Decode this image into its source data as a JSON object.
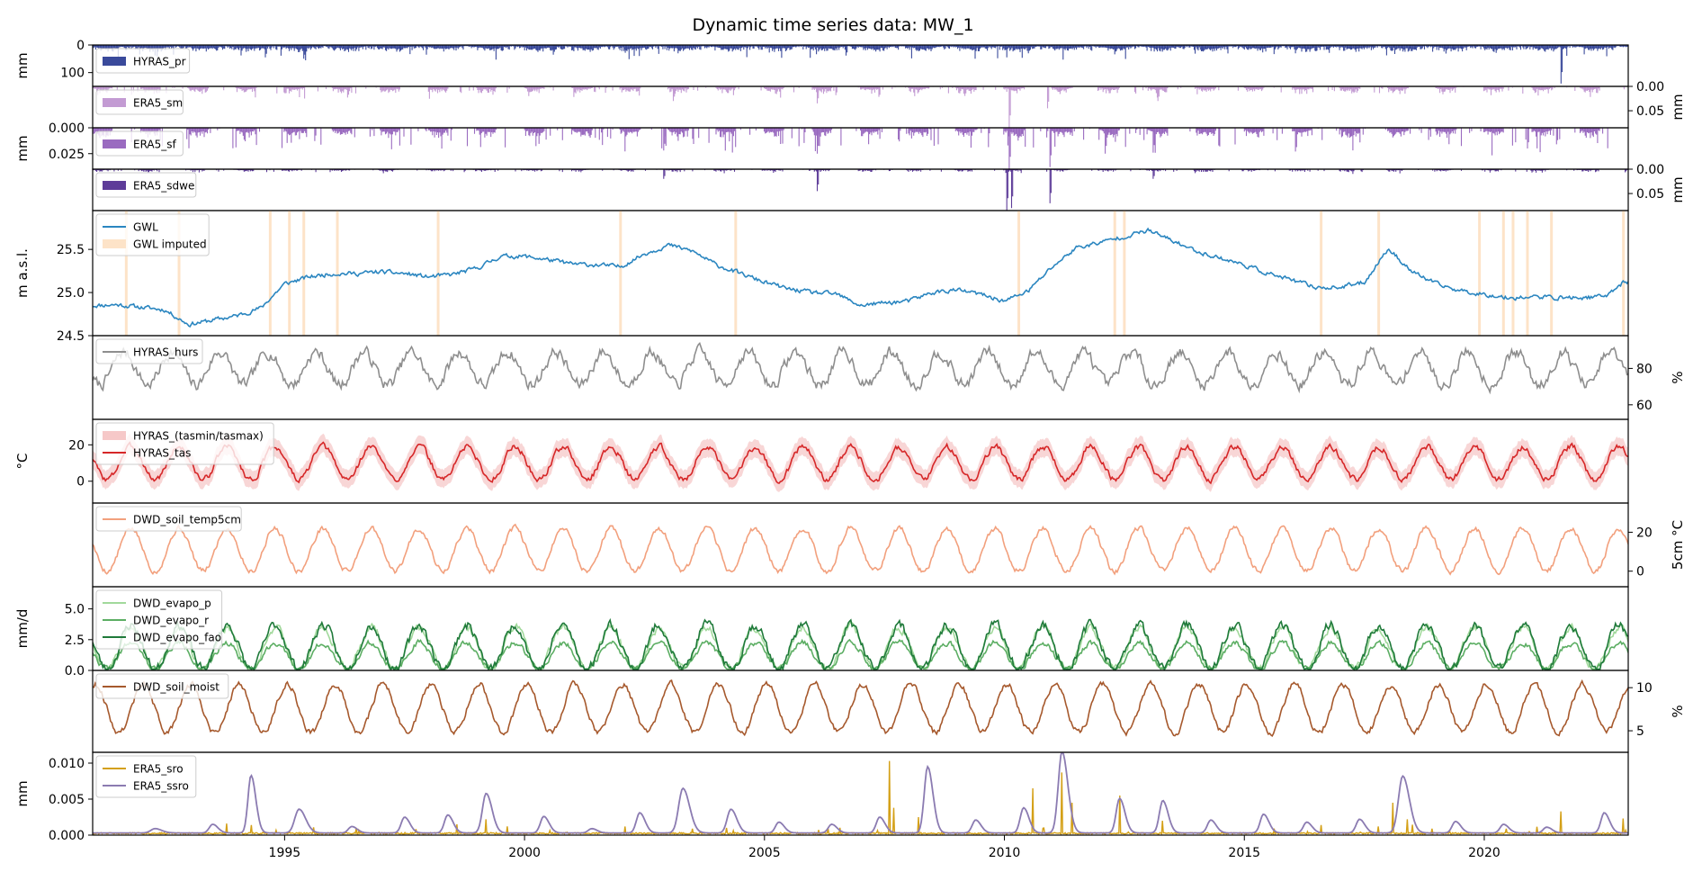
{
  "chart_data": {
    "type": "line",
    "title": "Dynamic time series data: MW_1",
    "x_axis": {
      "range": [
        1991.0,
        2023.0
      ],
      "ticks": [
        1995,
        2000,
        2005,
        2010,
        2015,
        2020
      ],
      "tick_labels": [
        "1995",
        "2000",
        "2005",
        "2010",
        "2015",
        "2020"
      ]
    },
    "panels": [
      {
        "id": "pr",
        "style": "bars_down",
        "ylabel": "mm",
        "ylabel_side": "left",
        "ylim": [
          150,
          0
        ],
        "ticks": [
          0,
          100
        ],
        "tick_labels": [
          "0",
          "100"
        ],
        "tick_side": "left",
        "series": [
          {
            "name": "HYRAS_pr",
            "color": "#3a4a9b",
            "legend_marker": "patch",
            "period": 1.0,
            "base": 8,
            "amp": 4,
            "phase": 0.3,
            "noise": 14,
            "spike_prob": 0.03,
            "spike_scale": 40,
            "events": [
              [
                1994.6,
                45
              ],
              [
                1995.4,
                50
              ],
              [
                2000.6,
                35
              ],
              [
                2003.2,
                30
              ],
              [
                2006.7,
                38
              ],
              [
                2010.5,
                30
              ],
              [
                2012.3,
                34
              ],
              [
                2021.6,
                140
              ],
              [
                2002.1,
                28
              ]
            ]
          }
        ]
      },
      {
        "id": "sm",
        "style": "bars_down",
        "ylabel": "mm",
        "ylabel_side": "right",
        "ylim": [
          0.085,
          0
        ],
        "ticks": [
          0.0,
          0.05
        ],
        "tick_labels": [
          "0.00",
          "0.05"
        ],
        "tick_side": "right",
        "series": [
          {
            "name": "ERA5_sm",
            "color": "#c39bd3",
            "legend_marker": "patch",
            "period": 1.0,
            "base": 0.002,
            "amp": 0.004,
            "phase": 0.2,
            "noise": 0.01,
            "spike_prob": 0.08,
            "spike_scale": 0.015,
            "season_only": true,
            "events": [
              [
                2010.1,
                0.085
              ],
              [
                2010.9,
                0.045
              ],
              [
                2006.1,
                0.035
              ],
              [
                2003.1,
                0.03
              ],
              [
                2013.2,
                0.03
              ]
            ]
          }
        ]
      },
      {
        "id": "sf",
        "style": "bars_down",
        "ylabel": "mm",
        "ylabel_side": "left",
        "ylim": [
          0.04,
          0
        ],
        "ticks": [
          0.0,
          0.025
        ],
        "tick_labels": [
          "0.000",
          "0.025"
        ],
        "tick_side": "left",
        "series": [
          {
            "name": "ERA5_sf",
            "color": "#9a6bc0",
            "legend_marker": "patch",
            "period": 1.0,
            "base": 0.001,
            "amp": 0.003,
            "phase": 0.2,
            "noise": 0.006,
            "spike_prob": 0.1,
            "spike_scale": 0.02,
            "season_only": true,
            "events": [
              [
                2010.1,
                0.04
              ],
              [
                2010.95,
                0.038
              ],
              [
                2006.1,
                0.025
              ],
              [
                2002.9,
                0.022
              ],
              [
                2012.1,
                0.025
              ],
              [
                2013.1,
                0.024
              ],
              [
                2020.9,
                0.02
              ]
            ]
          }
        ]
      },
      {
        "id": "sdwe",
        "style": "bars_down",
        "ylabel": "mm",
        "ylabel_side": "right",
        "ylim": [
          0.085,
          0
        ],
        "ticks": [
          0.0,
          0.05
        ],
        "tick_labels": [
          "0.00",
          "0.05"
        ],
        "tick_side": "right",
        "series": [
          {
            "name": "ERA5_sdwe",
            "color": "#5e3c99",
            "legend_marker": "patch",
            "period": 1.0,
            "base": 0.0,
            "amp": 0.002,
            "phase": 0.15,
            "noise": 0.004,
            "spike_prob": 0.06,
            "spike_scale": 0.006,
            "season_only": true,
            "events": [
              [
                2010.05,
                0.085
              ],
              [
                2010.15,
                0.08
              ],
              [
                2010.95,
                0.07
              ],
              [
                2006.1,
                0.045
              ],
              [
                2002.9,
                0.02
              ],
              [
                2013.1,
                0.02
              ]
            ]
          }
        ]
      },
      {
        "id": "gwl",
        "style": "line",
        "ylabel": "m a.s.l.",
        "ylabel_side": "left",
        "ylim": [
          24.5,
          25.95
        ],
        "ticks": [
          24.5,
          25.0,
          25.5
        ],
        "tick_labels": [
          "24.5",
          "25.0",
          "25.5"
        ],
        "tick_side": "left",
        "imputed_color": "#fde3c8",
        "imputed_periods": [
          1991.7,
          1992.8,
          1994.7,
          1995.1,
          1995.4,
          1996.1,
          1998.2,
          2002.0,
          2004.4,
          2010.3,
          2012.3,
          2012.5,
          2016.6,
          2017.8,
          2019.9,
          2020.4,
          2020.6,
          2020.9,
          2021.4,
          2022.9
        ],
        "series": [
          {
            "name": "GWL",
            "color": "#2b86c0",
            "legend_marker": "line",
            "x": [
              1991.0,
              1991.5,
              1992.0,
              1992.5,
              1993.0,
              1993.5,
              1994.0,
              1994.5,
              1995.0,
              1995.5,
              1996.0,
              1996.5,
              1997.0,
              1997.5,
              1998.0,
              1998.5,
              1999.0,
              1999.5,
              2000.0,
              2000.5,
              2001.0,
              2001.5,
              2002.0,
              2002.5,
              2003.0,
              2003.5,
              2004.0,
              2004.5,
              2005.0,
              2005.5,
              2006.0,
              2006.5,
              2007.0,
              2007.5,
              2008.0,
              2008.5,
              2009.0,
              2009.5,
              2010.0,
              2010.5,
              2011.0,
              2011.5,
              2012.0,
              2012.5,
              2013.0,
              2013.5,
              2014.0,
              2014.5,
              2015.0,
              2015.5,
              2016.0,
              2016.5,
              2017.0,
              2017.5,
              2018.0,
              2018.5,
              2019.0,
              2019.5,
              2020.0,
              2020.5,
              2021.0,
              2021.5,
              2022.0,
              2022.5,
              2022.9
            ],
            "y": [
              24.85,
              24.86,
              24.83,
              24.8,
              24.63,
              24.68,
              24.73,
              24.82,
              25.1,
              25.18,
              25.22,
              25.22,
              25.24,
              25.22,
              25.18,
              25.21,
              25.28,
              25.42,
              25.42,
              25.38,
              25.33,
              25.32,
              25.3,
              25.45,
              25.55,
              25.48,
              25.32,
              25.22,
              25.12,
              25.04,
              25.0,
              24.98,
              24.85,
              24.88,
              24.9,
              25.0,
              25.03,
              24.98,
              24.9,
              25.02,
              25.3,
              25.52,
              25.58,
              25.65,
              25.72,
              25.6,
              25.48,
              25.4,
              25.32,
              25.22,
              25.14,
              25.06,
              25.06,
              25.12,
              25.51,
              25.24,
              25.1,
              25.02,
              24.98,
              24.94,
              24.95,
              24.94,
              24.94,
              24.95,
              25.12
            ],
            "noise": 0.035,
            "seed": 11
          },
          {
            "name": "GWL imputed",
            "color": "#fde3c8",
            "legend_marker": "patch"
          }
        ]
      },
      {
        "id": "hurs",
        "style": "line",
        "ylabel": "%",
        "ylabel_side": "right",
        "ylim": [
          52,
          98
        ],
        "ticks": [
          60,
          80
        ],
        "tick_labels": [
          "60",
          "80"
        ],
        "tick_side": "right",
        "series": [
          {
            "name": "HYRAS_hurs",
            "color": "#8e8e8e",
            "legend_marker": "line",
            "period": 1.0,
            "base": 80,
            "amp": 9,
            "phase": 0.15,
            "noise": 5.0,
            "seed": 7
          }
        ]
      },
      {
        "id": "tas",
        "style": "band_line",
        "ylabel": "°C",
        "ylabel_side": "left",
        "ylim": [
          -12,
          34
        ],
        "ticks": [
          0,
          20
        ],
        "tick_labels": [
          "0",
          "20"
        ],
        "tick_side": "left",
        "series": [
          {
            "name": "HYRAS_(tasmin/tasmax)",
            "color": "#f6c8c8",
            "legend_marker": "patch",
            "band_width": 5
          },
          {
            "name": "HYRAS_tas",
            "color": "#d62728",
            "legend_marker": "line",
            "period": 1.0,
            "base": 10,
            "amp": 9,
            "phase": 0.3,
            "noise": 2.6,
            "seed": 3
          }
        ]
      },
      {
        "id": "soiltemp",
        "style": "line",
        "ylabel": "5cm °C",
        "ylabel_side": "right",
        "ylim": [
          -8,
          35
        ],
        "ticks": [
          0,
          20
        ],
        "tick_labels": [
          "0",
          "20"
        ],
        "tick_side": "right",
        "series": [
          {
            "name": "DWD_soil_temp5cm",
            "color": "#f2a07d",
            "legend_marker": "line",
            "period": 1.0,
            "base": 11,
            "amp": 11,
            "phase": 0.3,
            "noise": 2.2,
            "seed": 5
          }
        ]
      },
      {
        "id": "evapo",
        "style": "line",
        "ylabel": "mm/d",
        "ylabel_side": "left",
        "ylim": [
          0,
          6.8
        ],
        "ticks": [
          0.0,
          2.5,
          5.0
        ],
        "tick_labels": [
          "0.0",
          "2.5",
          "5.0"
        ],
        "tick_side": "left",
        "series": [
          {
            "name": "DWD_evapo_p",
            "color": "#a1d99b",
            "legend_marker": "line",
            "period": 1.0,
            "base": 1.8,
            "amp": 1.7,
            "phase": 0.3,
            "noise": 0.5,
            "floor": 0.1,
            "seed": 21
          },
          {
            "name": "DWD_evapo_r",
            "color": "#5cae63",
            "legend_marker": "line",
            "period": 1.0,
            "base": 1.2,
            "amp": 1.05,
            "phase": 0.3,
            "noise": 0.35,
            "floor": 0.1,
            "seed": 22
          },
          {
            "name": "DWD_evapo_fao",
            "color": "#1f7a3a",
            "legend_marker": "line",
            "period": 1.0,
            "base": 1.9,
            "amp": 1.8,
            "phase": 0.3,
            "noise": 0.6,
            "floor": 0.1,
            "seed": 23
          }
        ]
      },
      {
        "id": "soilmoist",
        "style": "line",
        "ylabel": "%",
        "ylabel_side": "right",
        "ylim": [
          2.5,
          12
        ],
        "ticks": [
          5,
          10
        ],
        "tick_labels": [
          "5",
          "10"
        ],
        "tick_side": "right",
        "series": [
          {
            "name": "DWD_soil_moist",
            "color": "#a6592d",
            "legend_marker": "line",
            "period": 1.0,
            "base": 7.6,
            "amp": 2.8,
            "phase": 0.05,
            "noise": 0.55,
            "plateau": 10.4,
            "seed": 9
          }
        ]
      },
      {
        "id": "runoff",
        "style": "line",
        "ylabel": "mm",
        "ylabel_side": "left",
        "ylim": [
          0,
          0.0115
        ],
        "ticks": [
          0.0,
          0.005,
          0.01
        ],
        "tick_labels": [
          "0.000",
          "0.005",
          "0.010"
        ],
        "tick_side": "left",
        "series": [
          {
            "name": "ERA5_sro",
            "color": "#d4a017",
            "legend_marker": "line",
            "style": "spiky",
            "base": 0.00015,
            "noise": 0.0002,
            "spike_prob": 0.03,
            "spike_scale": 0.0012,
            "seed": 31,
            "events": [
              [
                1993.8,
                0.0016
              ],
              [
                1994.3,
                0.0014
              ],
              [
                1996.5,
                0.001
              ],
              [
                1998.6,
                0.0015
              ],
              [
                1999.2,
                0.0022
              ],
              [
                2002.1,
                0.0012
              ],
              [
                2004.2,
                0.001
              ],
              [
                2007.6,
                0.0103
              ],
              [
                2007.7,
                0.0038
              ],
              [
                2008.2,
                0.0025
              ],
              [
                2010.6,
                0.0065
              ],
              [
                2011.2,
                0.0087
              ],
              [
                2011.4,
                0.0045
              ],
              [
                2012.4,
                0.0055
              ],
              [
                2013.3,
                0.002
              ],
              [
                2016.6,
                0.0014
              ],
              [
                2017.8,
                0.0012
              ],
              [
                2018.1,
                0.0045
              ],
              [
                2018.4,
                0.0022
              ],
              [
                2021.6,
                0.0033
              ],
              [
                2022.9,
                0.0023
              ]
            ]
          },
          {
            "name": "ERA5_ssro",
            "color": "#8b7bb1",
            "legend_marker": "line",
            "style": "peaks",
            "base": 0.0003,
            "peaks": [
              [
                1992.3,
                0.0006,
                0.25
              ],
              [
                1993.5,
                0.0012,
                0.2
              ],
              [
                1994.3,
                0.008,
                0.18
              ],
              [
                1995.3,
                0.0033,
                0.25
              ],
              [
                1996.4,
                0.0009,
                0.2
              ],
              [
                1997.5,
                0.0022,
                0.2
              ],
              [
                1998.4,
                0.0025,
                0.2
              ],
              [
                1999.2,
                0.0055,
                0.22
              ],
              [
                2000.4,
                0.0023,
                0.2
              ],
              [
                2001.4,
                0.0006,
                0.2
              ],
              [
                2002.4,
                0.0028,
                0.2
              ],
              [
                2003.3,
                0.0062,
                0.25
              ],
              [
                2004.3,
                0.0033,
                0.22
              ],
              [
                2005.3,
                0.0015,
                0.2
              ],
              [
                2006.4,
                0.0012,
                0.2
              ],
              [
                2007.4,
                0.0022,
                0.2
              ],
              [
                2008.4,
                0.0092,
                0.2
              ],
              [
                2009.4,
                0.0018,
                0.2
              ],
              [
                2010.4,
                0.0035,
                0.2
              ],
              [
                2011.2,
                0.0113,
                0.22
              ],
              [
                2012.4,
                0.0048,
                0.2
              ],
              [
                2013.3,
                0.0045,
                0.2
              ],
              [
                2014.3,
                0.0018,
                0.2
              ],
              [
                2015.4,
                0.0026,
                0.2
              ],
              [
                2016.3,
                0.0015,
                0.2
              ],
              [
                2017.4,
                0.0019,
                0.2
              ],
              [
                2018.3,
                0.0079,
                0.25
              ],
              [
                2019.4,
                0.0016,
                0.2
              ],
              [
                2020.4,
                0.0012,
                0.2
              ],
              [
                2021.3,
                0.0008,
                0.2
              ],
              [
                2022.5,
                0.0028,
                0.2
              ]
            ]
          }
        ]
      }
    ]
  }
}
